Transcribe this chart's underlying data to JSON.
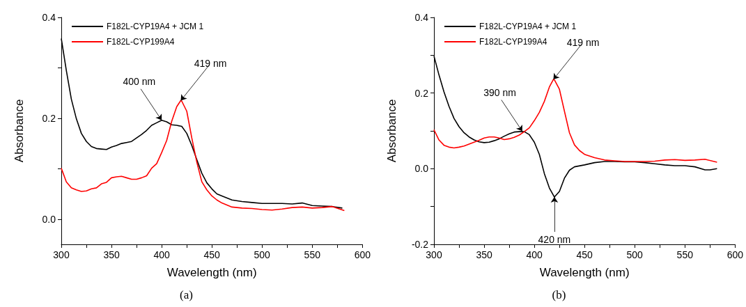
{
  "chart_data": [
    {
      "type": "line",
      "xlabel": "Wavelength (nm)",
      "ylabel": "Absorbance",
      "legend": "top left",
      "xlim": [
        300,
        600
      ],
      "ylim": [
        -0.05,
        0.4
      ],
      "xticks": [
        300,
        {
          "value": 325,
          "label": null
        },
        350,
        {
          "value": 375,
          "label": null
        },
        400,
        {
          "value": 425,
          "label": null
        },
        450,
        {
          "value": 475,
          "label": null
        },
        500,
        {
          "value": 525,
          "label": null
        },
        550,
        {
          "value": 575,
          "label": null
        },
        600
      ],
      "yticks": [
        {
          "value": 0,
          "label": "0.0"
        },
        {
          "value": 0.1,
          "label": null
        },
        {
          "value": 0.2,
          "label": "0.2"
        },
        {
          "value": 0.3,
          "label": null
        },
        {
          "value": 0.4,
          "label": "0.4"
        }
      ],
      "annotations": [
        {
          "text": "400 nm",
          "x": 400,
          "y": 0.196
        },
        {
          "text": "419 nm",
          "x": 419,
          "y": 0.235
        },
        "(a)"
      ],
      "series": [
        {
          "name": "F182L-CYP19A4 + JCM 1",
          "color": "#000000",
          "x": [
            300,
            305,
            310,
            315,
            320,
            325,
            330,
            335,
            340,
            345,
            350,
            355,
            360,
            365,
            370,
            375,
            380,
            385,
            390,
            395,
            400,
            405,
            410,
            415,
            420,
            425,
            430,
            435,
            440,
            445,
            450,
            455,
            460,
            470,
            480,
            490,
            500,
            520,
            530,
            540,
            550,
            560,
            570,
            580
          ],
          "values": [
            0.358,
            0.295,
            0.238,
            0.199,
            0.17,
            0.154,
            0.144,
            0.14,
            0.139,
            0.138,
            0.143,
            0.146,
            0.15,
            0.152,
            0.154,
            0.161,
            0.168,
            0.176,
            0.186,
            0.191,
            0.196,
            0.193,
            0.187,
            0.186,
            0.184,
            0.17,
            0.146,
            0.118,
            0.091,
            0.072,
            0.06,
            0.05,
            0.046,
            0.038,
            0.035,
            0.033,
            0.031,
            0.031,
            0.03,
            0.032,
            0.027,
            0.026,
            0.025,
            0.022
          ]
        },
        {
          "name": "F182L-CYP199A4",
          "color": "#ff0000",
          "x": [
            300,
            305,
            310,
            315,
            320,
            325,
            330,
            335,
            340,
            345,
            350,
            355,
            360,
            365,
            370,
            375,
            380,
            385,
            390,
            395,
            400,
            405,
            410,
            415,
            419,
            420,
            425,
            430,
            435,
            440,
            445,
            450,
            455,
            460,
            470,
            480,
            490,
            500,
            510,
            520,
            530,
            540,
            550,
            560,
            570,
            582
          ],
          "values": [
            0.101,
            0.074,
            0.062,
            0.058,
            0.055,
            0.056,
            0.06,
            0.062,
            0.07,
            0.073,
            0.082,
            0.084,
            0.085,
            0.082,
            0.079,
            0.079,
            0.082,
            0.086,
            0.101,
            0.11,
            0.132,
            0.156,
            0.194,
            0.223,
            0.235,
            0.234,
            0.214,
            0.161,
            0.113,
            0.074,
            0.058,
            0.046,
            0.038,
            0.032,
            0.024,
            0.022,
            0.021,
            0.019,
            0.018,
            0.02,
            0.023,
            0.024,
            0.022,
            0.023,
            0.025,
            0.017
          ]
        }
      ]
    },
    {
      "type": "line",
      "xlabel": "Wavelength (nm)",
      "ylabel": "Absorbance",
      "legend": "top left",
      "xlim": [
        300,
        600
      ],
      "ylim": [
        -0.2,
        0.4
      ],
      "xticks": [
        300,
        {
          "value": 325,
          "label": null
        },
        350,
        {
          "value": 375,
          "label": null
        },
        400,
        {
          "value": 425,
          "label": null
        },
        450,
        {
          "value": 475,
          "label": null
        },
        500,
        {
          "value": 525,
          "label": null
        },
        550,
        {
          "value": 575,
          "label": null
        },
        600
      ],
      "yticks": [
        {
          "value": -0.2,
          "label": "-0.2"
        },
        {
          "value": -0.1,
          "label": null
        },
        {
          "value": 0,
          "label": "0.0"
        },
        {
          "value": 0.1,
          "label": null
        },
        {
          "value": 0.2,
          "label": "0.2"
        },
        {
          "value": 0.3,
          "label": null
        },
        {
          "value": 0.4,
          "label": "0.4"
        }
      ],
      "annotations": [
        {
          "text": "390 nm",
          "x": 388,
          "y": 0.099
        },
        {
          "text": "419 nm",
          "x": 419,
          "y": 0.236
        },
        {
          "text": "420 nm",
          "x": 420,
          "y": -0.075
        },
        "(b)"
      ],
      "series": [
        {
          "name": "F182L-CYP19A4 + JCM 1",
          "color": "#000000",
          "x": [
            300,
            305,
            310,
            315,
            320,
            325,
            330,
            335,
            340,
            345,
            350,
            355,
            360,
            365,
            370,
            375,
            380,
            385,
            390,
            395,
            400,
            405,
            410,
            415,
            420,
            425,
            430,
            435,
            440,
            450,
            460,
            470,
            480,
            490,
            500,
            510,
            520,
            530,
            540,
            550,
            560,
            570,
            575,
            582
          ],
          "values": [
            0.298,
            0.248,
            0.203,
            0.165,
            0.133,
            0.111,
            0.095,
            0.084,
            0.076,
            0.071,
            0.069,
            0.07,
            0.074,
            0.079,
            0.086,
            0.092,
            0.097,
            0.098,
            0.098,
            0.09,
            0.07,
            0.038,
            -0.013,
            -0.051,
            -0.075,
            -0.06,
            -0.025,
            -0.004,
            0.005,
            0.01,
            0.016,
            0.019,
            0.019,
            0.018,
            0.018,
            0.016,
            0.013,
            0.01,
            0.008,
            0.008,
            0.005,
            -0.003,
            -0.003,
            0.0
          ]
        },
        {
          "name": "F182L-CYP199A4",
          "color": "#ff0000",
          "x": [
            300,
            305,
            310,
            315,
            320,
            325,
            330,
            335,
            340,
            345,
            350,
            355,
            360,
            365,
            370,
            375,
            380,
            385,
            390,
            395,
            400,
            405,
            410,
            415,
            419,
            420,
            425,
            430,
            435,
            440,
            445,
            450,
            460,
            470,
            480,
            490,
            500,
            510,
            520,
            530,
            540,
            550,
            560,
            570,
            582
          ],
          "values": [
            0.103,
            0.076,
            0.062,
            0.057,
            0.055,
            0.057,
            0.06,
            0.065,
            0.07,
            0.075,
            0.081,
            0.084,
            0.084,
            0.081,
            0.077,
            0.079,
            0.083,
            0.089,
            0.098,
            0.108,
            0.127,
            0.149,
            0.178,
            0.216,
            0.236,
            0.235,
            0.21,
            0.152,
            0.095,
            0.063,
            0.048,
            0.038,
            0.029,
            0.023,
            0.021,
            0.019,
            0.019,
            0.019,
            0.02,
            0.023,
            0.024,
            0.022,
            0.023,
            0.025,
            0.017
          ]
        }
      ]
    }
  ]
}
